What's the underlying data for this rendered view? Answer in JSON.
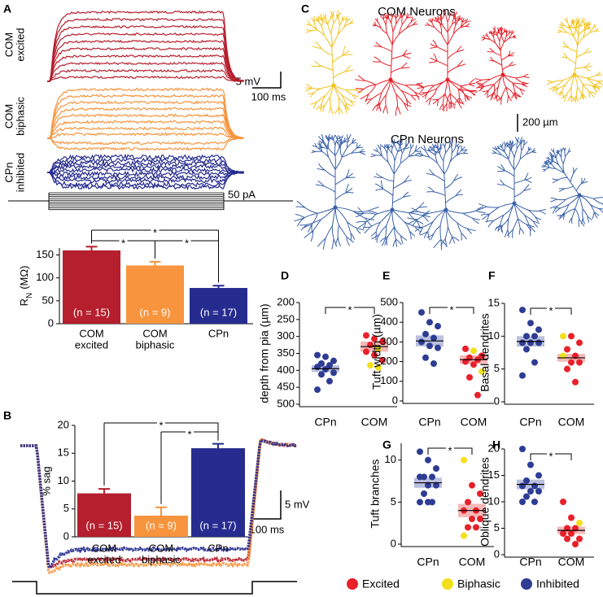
{
  "labels": {
    "panel_a": "A",
    "panel_b": "B",
    "panel_c": "C"
  },
  "traces": {
    "com_excited": {
      "label": [
        "COM",
        "excited"
      ],
      "color": "#b51f2e"
    },
    "com_biphasic": {
      "label": [
        "COM",
        "biphasic"
      ],
      "color": "#f7943d"
    },
    "cpn_inhibited": {
      "label": [
        "CPn",
        "inhibited"
      ],
      "color": "#262c8f"
    },
    "voltage_scale": "5 mV",
    "time_scale": "100 ms",
    "current_scale": "50 pA"
  },
  "sag_scale": {
    "voltage": "5 mV",
    "time": "100 ms"
  },
  "morphology": {
    "com_title": "COM Neurons",
    "cpn_title": "CPn Neurons",
    "scale": "200 µm",
    "colors": {
      "biphasic": "#f1c21b",
      "excited": "#e5202a",
      "inhibited": "#3b62a8"
    }
  },
  "legend": [
    {
      "name": "Excited",
      "color": "#e8202a"
    },
    {
      "name": "Biphasic",
      "color": "#f2e01b"
    },
    {
      "name": "Inhibited",
      "color": "#2e3c94"
    }
  ],
  "chart_data": [
    {
      "type": "bar",
      "categories": [
        [
          "COM",
          "excited"
        ],
        [
          "COM",
          "biphasic"
        ],
        [
          "CPn"
        ]
      ],
      "values": [
        160,
        127,
        78
      ],
      "errors": [
        8,
        8,
        5
      ],
      "annotations": [
        "(n = 15)",
        "(n = 9)",
        "(n = 17)"
      ],
      "colors": [
        "#b51f2e",
        "#f7943d",
        "#262c8f"
      ],
      "ylabel": [
        "R",
        "N",
        "(MΩ)"
      ],
      "ylim": [
        0,
        165
      ],
      "yticks": [
        0,
        50,
        100,
        150
      ],
      "significance": [
        {
          "pair": [
            0,
            2
          ],
          "label": "*"
        },
        {
          "pair": [
            0,
            1
          ],
          "label": "*"
        },
        {
          "pair": [
            1,
            2
          ],
          "label": "*"
        }
      ]
    },
    {
      "type": "bar",
      "categories": [
        [
          "COM",
          "excited"
        ],
        [
          "COM",
          "biphasic"
        ],
        [
          "CPn"
        ]
      ],
      "values": [
        7.8,
        3.8,
        15.9
      ],
      "errors": [
        0.8,
        1.5,
        0.8
      ],
      "annotations": [
        "(n = 15)",
        "(n = 9)",
        "(n = 17)"
      ],
      "colors": [
        "#b51f2e",
        "#f7943d",
        "#262c8f"
      ],
      "ylabel": "% sag",
      "ylim": [
        0,
        20
      ],
      "yticks": [
        0,
        5,
        10,
        15,
        20
      ],
      "significance": [
        {
          "pair": [
            0,
            2
          ],
          "label": "*"
        },
        {
          "pair": [
            1,
            2
          ],
          "label": "*"
        }
      ]
    },
    {
      "type": "strip",
      "panel": "D",
      "ylabel": "depth from pia (µm)",
      "categories": [
        "CPn",
        "COM"
      ],
      "inverted": true,
      "points": [
        [
          355,
          360,
          372,
          380,
          385,
          390,
          397,
          407,
          412,
          432,
          457
        ],
        [
          297,
          307,
          315,
          325,
          335,
          345,
          355,
          370,
          385,
          392
        ]
      ],
      "colors": [
        [
          "#2e3c94",
          "#2e3c94",
          "#2e3c94",
          "#2e3c94",
          "#2e3c94",
          "#2e3c94",
          "#2e3c94",
          "#2e3c94",
          "#2e3c94",
          "#2e3c94",
          "#2e3c94"
        ],
        [
          "#e8202a",
          "#e8202a",
          "#e8202a",
          "#e8202a",
          "#f2e01b",
          "#e8202a",
          "#e8202a",
          "#e8202a",
          "#f2e01b",
          "#f2e01b"
        ]
      ],
      "means": [
        395,
        330
      ],
      "sems": [
        10,
        15
      ],
      "band_colors": [
        "#8c96c8",
        "#f08a8a"
      ],
      "ylim": [
        200,
        500
      ],
      "yticks": [
        200,
        250,
        300,
        350,
        400,
        450,
        500
      ],
      "significance": "*"
    },
    {
      "type": "strip",
      "panel": "E",
      "ylabel": "Tuft width (µm)",
      "categories": [
        "CPn",
        "COM"
      ],
      "points": [
        [
          450,
          400,
          380,
          340,
          320,
          300,
          280,
          270,
          220,
          190
        ],
        [
          265,
          255,
          230,
          220,
          210,
          200,
          185,
          150,
          120,
          30
        ]
      ],
      "colors": [
        [
          "#2e3c94",
          "#2e3c94",
          "#2e3c94",
          "#2e3c94",
          "#2e3c94",
          "#2e3c94",
          "#2e3c94",
          "#2e3c94",
          "#2e3c94",
          "#2e3c94"
        ],
        [
          "#e8202a",
          "#f2e01b",
          "#e8202a",
          "#e8202a",
          "#e8202a",
          "#e8202a",
          "#e8202a",
          "#f2e01b",
          "#e8202a",
          "#e8202a"
        ]
      ],
      "means": [
        305,
        210
      ],
      "sems": [
        28,
        22
      ],
      "band_colors": [
        "#8c96c8",
        "#f08a8a"
      ],
      "ylim": [
        0,
        500
      ],
      "yticks": [
        0,
        100,
        200,
        300,
        400,
        500
      ],
      "significance": "*"
    },
    {
      "type": "strip",
      "panel": "F",
      "ylabel": "Basal dendrites",
      "categories": [
        "CPn",
        "COM"
      ],
      "points": [
        [
          14,
          12,
          11,
          10,
          10,
          9,
          9,
          9,
          8,
          6,
          4
        ],
        [
          10,
          10,
          9,
          8,
          7,
          7,
          6,
          6,
          5,
          3
        ]
      ],
      "colors": [
        [
          "#2e3c94",
          "#2e3c94",
          "#2e3c94",
          "#2e3c94",
          "#2e3c94",
          "#2e3c94",
          "#2e3c94",
          "#2e3c94",
          "#2e3c94",
          "#2e3c94",
          "#2e3c94"
        ],
        [
          "#f2e01b",
          "#e8202a",
          "#e8202a",
          "#e8202a",
          "#e8202a",
          "#f2e01b",
          "#e8202a",
          "#e8202a",
          "#e8202a",
          "#e8202a"
        ]
      ],
      "means": [
        9.2,
        6.7
      ],
      "sems": [
        0.8,
        0.6
      ],
      "band_colors": [
        "#8c96c8",
        "#f08a8a"
      ],
      "ylim": [
        0,
        15
      ],
      "yticks": [
        0,
        5,
        10,
        15
      ],
      "significance": "*"
    },
    {
      "type": "strip",
      "panel": "G",
      "ylabel": "Tuft branches",
      "categories": [
        "CPn",
        "COM"
      ],
      "points": [
        [
          11,
          10,
          9,
          8,
          8,
          8,
          7,
          7,
          6,
          5,
          5,
          5
        ],
        [
          10,
          7,
          6,
          5,
          4,
          4,
          3,
          3,
          2,
          2,
          1
        ]
      ],
      "colors": [
        [
          "#2e3c94",
          "#2e3c94",
          "#2e3c94",
          "#2e3c94",
          "#2e3c94",
          "#2e3c94",
          "#2e3c94",
          "#2e3c94",
          "#2e3c94",
          "#2e3c94",
          "#2e3c94",
          "#2e3c94"
        ],
        [
          "#f2e01b",
          "#e8202a",
          "#e8202a",
          "#e8202a",
          "#e8202a",
          "#e8202a",
          "#e8202a",
          "#e8202a",
          "#e8202a",
          "#e8202a",
          "#f2e01b"
        ]
      ],
      "means": [
        7.3,
        4
      ],
      "sems": [
        0.6,
        0.8
      ],
      "band_colors": [
        "#8c96c8",
        "#f08a8a"
      ],
      "ylim": [
        0,
        12
      ],
      "yticks": [
        0,
        5,
        10
      ],
      "significance": "*"
    },
    {
      "type": "strip",
      "panel": "H",
      "ylabel": "Oblique dendrites",
      "categories": [
        "CPn",
        "COM"
      ],
      "points": [
        [
          20,
          17,
          15,
          14,
          13,
          13,
          12,
          12,
          11,
          10,
          10
        ],
        [
          10,
          7,
          6,
          5,
          5,
          4,
          4,
          3,
          3,
          2
        ]
      ],
      "colors": [
        [
          "#2e3c94",
          "#2e3c94",
          "#2e3c94",
          "#2e3c94",
          "#2e3c94",
          "#2e3c94",
          "#2e3c94",
          "#2e3c94",
          "#2e3c94",
          "#2e3c94",
          "#2e3c94"
        ],
        [
          "#e8202a",
          "#e8202a",
          "#f2e01b",
          "#e8202a",
          "#e8202a",
          "#e8202a",
          "#e8202a",
          "#e8202a",
          "#e8202a",
          "#e8202a"
        ]
      ],
      "means": [
        13.3,
        4.6
      ],
      "sems": [
        0.9,
        0.7
      ],
      "band_colors": [
        "#8c96c8",
        "#f08a8a"
      ],
      "ylim": [
        0,
        20
      ],
      "yticks": [
        0,
        5,
        10,
        15,
        20
      ],
      "significance": "*"
    }
  ]
}
